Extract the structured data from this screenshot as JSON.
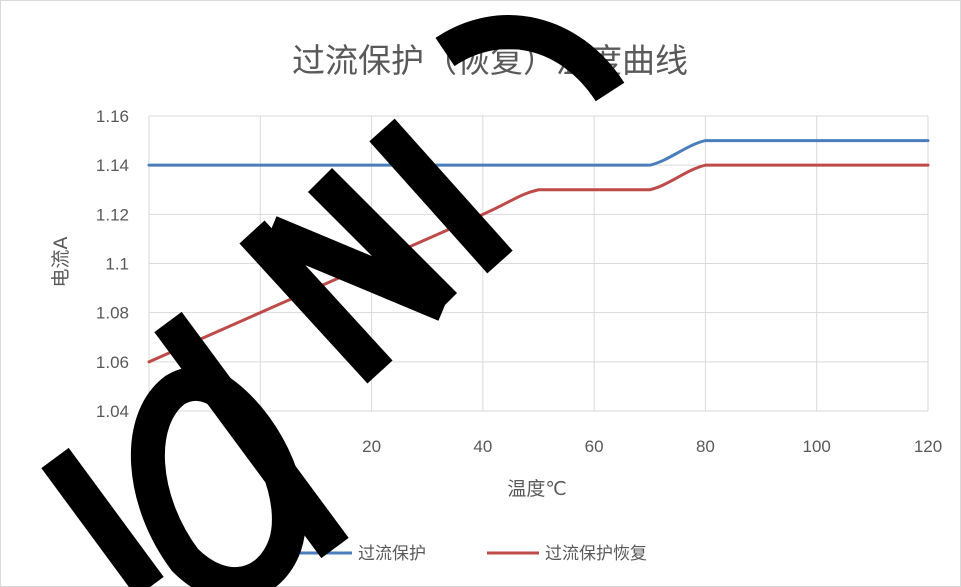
{
  "chart_data": {
    "type": "line",
    "title": "过流保护（恢复）温度曲线",
    "xlabel": "温度℃",
    "ylabel": "电流A",
    "xlim": [
      -20,
      120
    ],
    "ylim": [
      1.04,
      1.16
    ],
    "x_ticks": [
      -20,
      0,
      20,
      40,
      60,
      80,
      100,
      120
    ],
    "y_ticks": [
      "1.04",
      "1.06",
      "1.08",
      "1.1",
      "1.12",
      "1.14",
      "1.16"
    ],
    "grid": true,
    "legend": "bottom",
    "series": [
      {
        "name": "过流保护",
        "color": "#4a7ebb",
        "x": [
          -20,
          0,
          20,
          40,
          60,
          70,
          80,
          90,
          100,
          120
        ],
        "y": [
          1.14,
          1.14,
          1.14,
          1.14,
          1.14,
          1.14,
          1.15,
          1.15,
          1.15,
          1.15
        ]
      },
      {
        "name": "过流保护恢复",
        "color": "#be4b48",
        "x": [
          -20,
          0,
          20,
          40,
          50,
          60,
          70,
          80,
          90,
          100,
          120
        ],
        "y": [
          1.06,
          1.08,
          1.1,
          1.12,
          1.13,
          1.13,
          1.13,
          1.14,
          1.14,
          1.14,
          1.14
        ]
      }
    ]
  },
  "watermark": {
    "text": "JOINIC",
    "color": "#000000"
  }
}
